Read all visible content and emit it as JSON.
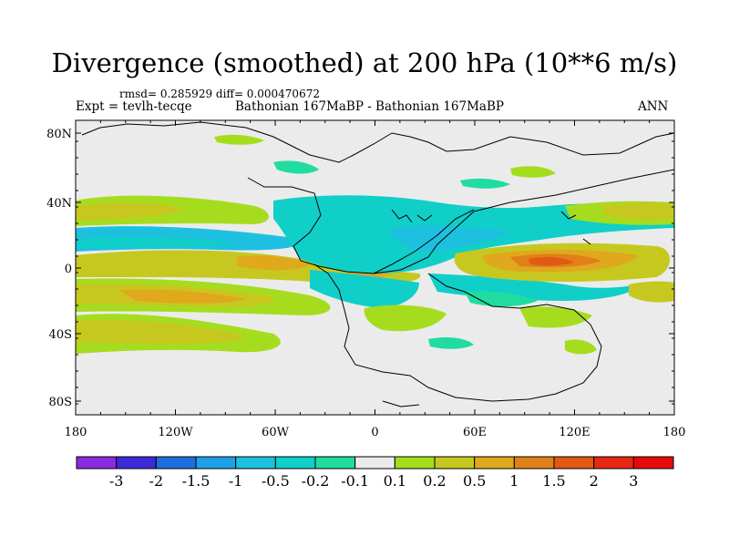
{
  "title": "Divergence (smoothed) at 200 hPa (10**6 m/s)",
  "stats": "rmsd= 0.285929 diff= 0.000470672",
  "expt": "Expt = tevlh-tecqe",
  "center_label": "Bathonian 167MaBP - Bathonian 167MaBP",
  "season": "ANN",
  "axes": {
    "lat_ticks": [
      "80N",
      "40N",
      "0",
      "40S",
      "80S"
    ],
    "lon_ticks": [
      "180",
      "120W",
      "60W",
      "0",
      "60E",
      "120E",
      "180"
    ]
  },
  "colorbar": {
    "labels": [
      "-3",
      "-2",
      "-1.5",
      "-1",
      "-0.5",
      "-0.2",
      "-0.1",
      "0.1",
      "0.2",
      "0.5",
      "1",
      "1.5",
      "2",
      "3"
    ],
    "colors": [
      "#8a2be2",
      "#3a2ad8",
      "#1e6ee0",
      "#1ea0e8",
      "#1ec0e0",
      "#10cfc8",
      "#20dca0",
      "#ebebeb",
      "#a6dc1e",
      "#c6c820",
      "#e0a81c",
      "#e08018",
      "#e05a14",
      "#e82812",
      "#e80a0a"
    ]
  },
  "field_colors": {
    "neutral": "#ebebeb",
    "pos_weak": "#a6dc1e",
    "pos_mid": "#c6c820",
    "pos_strong": "#e0a81c",
    "pos_stronger": "#e08018",
    "pos_max": "#e05a14",
    "neg_weak": "#20dca0",
    "neg_mid": "#10cfc8",
    "neg_strong": "#1ec0e0",
    "neg_stronger": "#1ea0e8"
  }
}
